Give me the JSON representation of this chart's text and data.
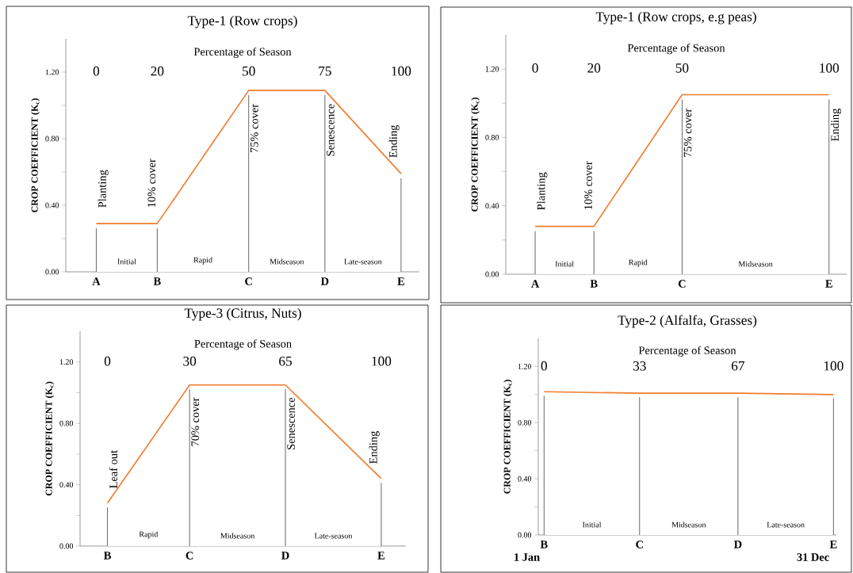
{
  "chart_data": [
    {
      "type": "line",
      "title": "Type-1 (Row crops)",
      "xlabel": "Percentage of Season",
      "ylabel": "CROP COEFFICIENT (K$_{c}$)",
      "x": [
        0,
        20,
        50,
        75,
        100
      ],
      "series": [
        {
          "color": "#f07c2c",
          "values": [
            0.29,
            0.29,
            1.09,
            1.09,
            0.59
          ]
        }
      ],
      "xlim": [
        -10,
        106
      ],
      "xticks": [
        0,
        20,
        50,
        75,
        100
      ],
      "ylim": [
        0,
        1.4
      ],
      "yticks": [
        {
          "value": 0,
          "label": "0.00"
        },
        {
          "value": 0.2,
          "label": null
        },
        {
          "value": 0.4,
          "label": "0.40"
        },
        {
          "value": 0.6,
          "label": null
        },
        {
          "value": 0.8,
          "label": "0.80"
        },
        {
          "value": 1.0,
          "label": null
        },
        {
          "value": 1.2,
          "label": "1.20"
        }
      ],
      "ref_lines": [
        {
          "axis": "x",
          "value": 0,
          "label": "Planting"
        },
        {
          "axis": "x",
          "value": 20,
          "label": "10% cover"
        },
        {
          "axis": "x",
          "value": 50,
          "label": "75% cover"
        },
        {
          "axis": "x",
          "value": 75,
          "label": "Senescence"
        },
        {
          "axis": "x",
          "value": 100,
          "label": "Ending"
        }
      ],
      "bands": [
        {
          "axis": "x",
          "from": 0,
          "to": 20,
          "label": "Initial",
          "color": "#ffffff"
        },
        {
          "axis": "x",
          "from": 20,
          "to": 50,
          "label": "Rapid",
          "color": "#ffffff"
        },
        {
          "axis": "x",
          "from": 50,
          "to": 75,
          "label": "Midseason",
          "color": "#ffffff"
        },
        {
          "axis": "x",
          "from": 75,
          "to": 100,
          "label": "Late-season",
          "color": "#ffffff"
        }
      ],
      "annotations": [
        {
          "text": "A",
          "x": 0,
          "y": 0
        },
        {
          "text": "B",
          "x": 20,
          "y": 0
        },
        {
          "text": "C",
          "x": 50,
          "y": 0
        },
        {
          "text": "D",
          "x": 75,
          "y": 0
        },
        {
          "text": "E",
          "x": 100,
          "y": 0
        }
      ]
    },
    {
      "type": "line",
      "title": "Type-1 (Row crops, e.g peas)",
      "xlabel": "Percentage of Season",
      "ylabel": "CROP COEFFICIENT (K$_{c}$)",
      "x": [
        0,
        20,
        50,
        100
      ],
      "series": [
        {
          "color": "#f07c2c",
          "values": [
            0.28,
            0.28,
            1.05,
            1.05
          ]
        }
      ],
      "xlim": [
        -10,
        106
      ],
      "xticks": [
        0,
        20,
        50,
        100
      ],
      "ylim": [
        0,
        1.4
      ],
      "yticks": [
        {
          "value": 0,
          "label": "0.00"
        },
        {
          "value": 0.2,
          "label": null
        },
        {
          "value": 0.4,
          "label": "0.40"
        },
        {
          "value": 0.6,
          "label": null
        },
        {
          "value": 0.8,
          "label": "0.80"
        },
        {
          "value": 1.0,
          "label": null
        },
        {
          "value": 1.2,
          "label": "1.20"
        }
      ],
      "ref_lines": [
        {
          "axis": "x",
          "value": 0,
          "label": "Planting"
        },
        {
          "axis": "x",
          "value": 20,
          "label": "10% cover"
        },
        {
          "axis": "x",
          "value": 50,
          "label": "75% cover"
        },
        {
          "axis": "x",
          "value": 100,
          "label": "Ending"
        }
      ],
      "bands": [
        {
          "axis": "x",
          "from": 0,
          "to": 20,
          "label": "Initial",
          "color": "#ffffff"
        },
        {
          "axis": "x",
          "from": 20,
          "to": 50,
          "label": "Rapid",
          "color": "#ffffff"
        },
        {
          "axis": "x",
          "from": 50,
          "to": 100,
          "label": "Midseason",
          "color": "#ffffff"
        }
      ],
      "annotations": [
        {
          "text": "A",
          "x": 0,
          "y": 0
        },
        {
          "text": "B",
          "x": 20,
          "y": 0
        },
        {
          "text": "C",
          "x": 50,
          "y": 0
        },
        {
          "text": "E",
          "x": 100,
          "y": 0
        }
      ]
    },
    {
      "type": "line",
      "title": "Type-3 (Citrus, Nuts)",
      "xlabel": "Percentage of Season",
      "ylabel": "CROP COEFFICIENT (K$_{c}$)",
      "x": [
        0,
        30,
        65,
        100
      ],
      "series": [
        {
          "color": "#f07c2c",
          "values": [
            0.28,
            1.05,
            1.05,
            0.44
          ]
        }
      ],
      "xlim": [
        -10,
        109
      ],
      "xticks": [
        0,
        30,
        65,
        100
      ],
      "ylim": [
        0,
        1.4
      ],
      "yticks": [
        {
          "value": 0,
          "label": "0.00"
        },
        {
          "value": 0.2,
          "label": null
        },
        {
          "value": 0.4,
          "label": "0.40"
        },
        {
          "value": 0.6,
          "label": null
        },
        {
          "value": 0.8,
          "label": "0.80"
        },
        {
          "value": 1.0,
          "label": null
        },
        {
          "value": 1.2,
          "label": "1.20"
        }
      ],
      "ref_lines": [
        {
          "axis": "x",
          "value": 0,
          "label": "Leaf out"
        },
        {
          "axis": "x",
          "value": 30,
          "label": "70% cover"
        },
        {
          "axis": "x",
          "value": 65,
          "label": "Senescence"
        },
        {
          "axis": "x",
          "value": 100,
          "label": "Ending"
        }
      ],
      "bands": [
        {
          "axis": "x",
          "from": 0,
          "to": 30,
          "label": "Rapid",
          "color": "#ffffff"
        },
        {
          "axis": "x",
          "from": 30,
          "to": 65,
          "label": "Midseason",
          "color": "#ffffff"
        },
        {
          "axis": "x",
          "from": 65,
          "to": 100,
          "label": "Late-season",
          "color": "#ffffff"
        }
      ],
      "annotations": [
        {
          "text": "B",
          "x": 0,
          "y": 0
        },
        {
          "text": "C",
          "x": 30,
          "y": 0
        },
        {
          "text": "D",
          "x": 65,
          "y": 0
        },
        {
          "text": "E",
          "x": 100,
          "y": 0
        }
      ]
    },
    {
      "type": "line",
      "title": "Type-2 (Alfalfa, Grasses)",
      "xlabel": "Percentage of Season",
      "ylabel": "CROP COEFFICIENT (K$_{c}$)",
      "x": [
        0,
        33,
        67,
        100
      ],
      "series": [
        {
          "color": "#f07c2c",
          "values": [
            1.02,
            1.01,
            1.01,
            1.0
          ]
        }
      ],
      "xlim": [
        -2,
        101
      ],
      "xticks": [
        0,
        33,
        67,
        100
      ],
      "ylim": [
        0,
        1.4
      ],
      "yticks": [
        {
          "value": 0,
          "label": "0.00"
        },
        {
          "value": 0.2,
          "label": null
        },
        {
          "value": 0.4,
          "label": "0.40"
        },
        {
          "value": 0.6,
          "label": null
        },
        {
          "value": 0.8,
          "label": "0.80"
        },
        {
          "value": 1.0,
          "label": null
        },
        {
          "value": 1.2,
          "label": "1.20"
        }
      ],
      "ref_lines": [
        {
          "axis": "x",
          "value": 0
        },
        {
          "axis": "x",
          "value": 33
        },
        {
          "axis": "x",
          "value": 67
        },
        {
          "axis": "x",
          "value": 100
        }
      ],
      "bands": [
        {
          "axis": "x",
          "from": 0,
          "to": 33,
          "label": "Initial",
          "color": "#ffffff"
        },
        {
          "axis": "x",
          "from": 33,
          "to": 67,
          "label": "Midseason",
          "color": "#ffffff"
        },
        {
          "axis": "x",
          "from": 67,
          "to": 100,
          "label": "Late-season",
          "color": "#ffffff"
        }
      ],
      "annotations": [
        {
          "text": "B",
          "x": 0,
          "y": 0
        },
        {
          "text": "C",
          "x": 33,
          "y": 0
        },
        {
          "text": "D",
          "x": 67,
          "y": 0
        },
        {
          "text": "E",
          "x": 100,
          "y": 0
        },
        {
          "text": "1 Jan",
          "x": 0,
          "y": 0
        },
        {
          "text": "31 Dec",
          "x": 100,
          "y": 0
        }
      ]
    }
  ]
}
